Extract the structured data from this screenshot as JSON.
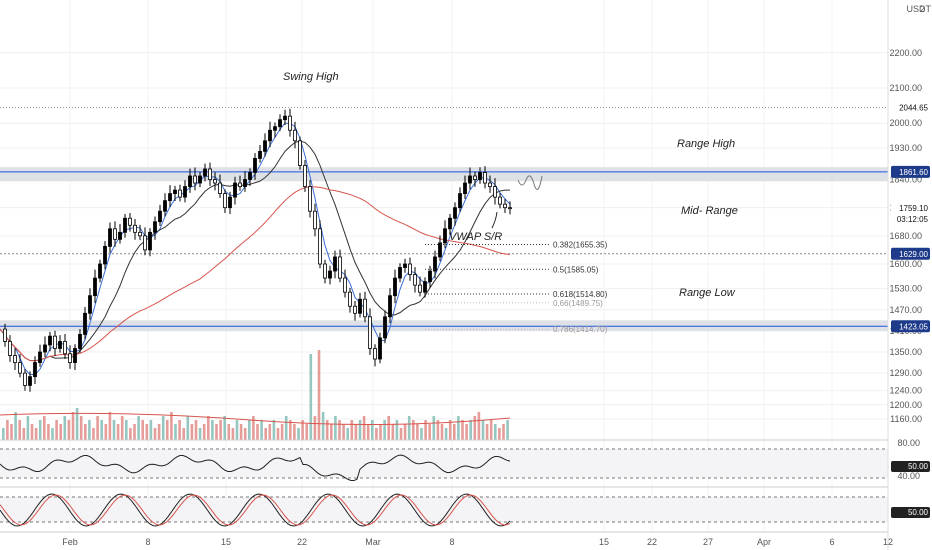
{
  "chart_data": {
    "type": "candlestick",
    "currency": "USDT",
    "ylim": [
      1100,
      2350
    ],
    "y_ticks": [
      1160,
      1200,
      1240,
      1290,
      1350,
      1410,
      1470,
      1530,
      1600,
      1680,
      1760,
      1840,
      1930,
      2000,
      2100,
      2200
    ],
    "y_tick_labels": [
      "1160.00",
      "1200.00",
      "1240.00",
      "1290.00",
      "1350.00",
      "1410.00",
      "1470.00",
      "1530.00",
      "1600.00",
      "1680.00",
      "1760.00",
      "1840.00",
      "1930.00",
      "2000.00",
      "2100.00",
      "2200.00"
    ],
    "x_ticks": [
      "Feb",
      "8",
      "15",
      "22",
      "Mar",
      "8",
      "15",
      "22",
      "27",
      "Apr",
      "6",
      "12"
    ],
    "price_levels": [
      {
        "label": "2044.65",
        "value": 2044.65
      },
      {
        "label": "1861.60",
        "value": 1861.6
      },
      {
        "label": "1629.00",
        "value": 1629.0
      },
      {
        "label": "1423.05",
        "value": 1423.05
      }
    ],
    "current_price": {
      "label": "1759.10",
      "countdown": "03:12:05",
      "value": 1759.1
    },
    "annotations": {
      "swing_high": "Swing High",
      "range_high": "Range High",
      "mid_range": "Mid- Range",
      "range_low": "Range Low",
      "vwap": "VWAP S/R"
    },
    "fib_levels": [
      {
        "label": "0.382(1655.35)",
        "value": 1655.35,
        "dim": false
      },
      {
        "label": "0.5(1585.05)",
        "value": 1585.05,
        "dim": false
      },
      {
        "label": "0.618(1514.80)",
        "value": 1514.8,
        "dim": false
      },
      {
        "label": "0.66(1489.75)",
        "value": 1489.75,
        "dim": true
      },
      {
        "label": "0.786(1414.70)",
        "value": 1414.7,
        "dim": true
      }
    ],
    "price_path": [
      [
        0,
        1415
      ],
      [
        5,
        1380
      ],
      [
        10,
        1340
      ],
      [
        15,
        1320
      ],
      [
        20,
        1290
      ],
      [
        25,
        1255
      ],
      [
        30,
        1280
      ],
      [
        35,
        1320
      ],
      [
        40,
        1350
      ],
      [
        45,
        1370
      ],
      [
        50,
        1395
      ],
      [
        55,
        1360
      ],
      [
        60,
        1380
      ],
      [
        65,
        1345
      ],
      [
        70,
        1320
      ],
      [
        75,
        1360
      ],
      [
        80,
        1400
      ],
      [
        85,
        1460
      ],
      [
        90,
        1510
      ],
      [
        95,
        1560
      ],
      [
        100,
        1600
      ],
      [
        105,
        1650
      ],
      [
        110,
        1700
      ],
      [
        115,
        1670
      ],
      [
        120,
        1690
      ],
      [
        125,
        1730
      ],
      [
        130,
        1710
      ],
      [
        135,
        1690
      ],
      [
        140,
        1680
      ],
      [
        145,
        1640
      ],
      [
        150,
        1690
      ],
      [
        155,
        1720
      ],
      [
        160,
        1750
      ],
      [
        165,
        1780
      ],
      [
        170,
        1800
      ],
      [
        175,
        1810
      ],
      [
        180,
        1790
      ],
      [
        185,
        1820
      ],
      [
        190,
        1850
      ],
      [
        195,
        1830
      ],
      [
        200,
        1850
      ],
      [
        205,
        1870
      ],
      [
        210,
        1840
      ],
      [
        215,
        1830
      ],
      [
        220,
        1800
      ],
      [
        225,
        1760
      ],
      [
        230,
        1790
      ],
      [
        235,
        1830
      ],
      [
        240,
        1820
      ],
      [
        245,
        1840
      ],
      [
        250,
        1860
      ],
      [
        255,
        1900
      ],
      [
        260,
        1920
      ],
      [
        265,
        1950
      ],
      [
        270,
        1980
      ],
      [
        275,
        1990
      ],
      [
        280,
        2010
      ],
      [
        285,
        2020
      ],
      [
        290,
        1980
      ],
      [
        295,
        1950
      ],
      [
        300,
        1880
      ],
      [
        305,
        1820
      ],
      [
        310,
        1750
      ],
      [
        315,
        1700
      ],
      [
        320,
        1600
      ],
      [
        325,
        1560
      ],
      [
        330,
        1580
      ],
      [
        335,
        1620
      ],
      [
        340,
        1560
      ],
      [
        345,
        1520
      ],
      [
        350,
        1480
      ],
      [
        355,
        1460
      ],
      [
        360,
        1500
      ],
      [
        365,
        1450
      ],
      [
        370,
        1360
      ],
      [
        375,
        1330
      ],
      [
        380,
        1390
      ],
      [
        385,
        1450
      ],
      [
        390,
        1510
      ],
      [
        395,
        1560
      ],
      [
        400,
        1590
      ],
      [
        405,
        1600
      ],
      [
        410,
        1570
      ],
      [
        415,
        1540
      ],
      [
        420,
        1520
      ],
      [
        425,
        1550
      ],
      [
        430,
        1580
      ],
      [
        435,
        1620
      ],
      [
        440,
        1660
      ],
      [
        445,
        1700
      ],
      [
        450,
        1730
      ],
      [
        455,
        1760
      ],
      [
        460,
        1800
      ],
      [
        465,
        1830
      ],
      [
        470,
        1850
      ],
      [
        475,
        1840
      ],
      [
        480,
        1860
      ],
      [
        485,
        1830
      ],
      [
        490,
        1820
      ],
      [
        495,
        1790
      ],
      [
        500,
        1770
      ],
      [
        505,
        1760
      ],
      [
        510,
        1759
      ]
    ],
    "volume_heights": [
      0.3,
      0.5,
      0.4,
      0.7,
      0.5,
      0.3,
      0.6,
      0.4,
      0.3,
      0.5,
      0.6,
      0.4,
      0.3,
      0.5,
      0.4,
      0.6,
      0.5,
      0.7,
      0.8,
      0.6,
      0.4,
      0.5,
      0.3,
      0.6,
      0.5,
      0.4,
      0.7,
      0.5,
      0.4,
      0.6,
      0.5,
      0.3,
      0.4,
      0.6,
      0.5,
      0.4,
      0.5,
      0.3,
      0.4,
      0.6,
      0.5,
      0.7,
      0.4,
      0.5,
      0.3,
      0.6,
      0.4,
      0.5,
      0.3,
      0.4,
      0.6,
      0.5,
      0.4,
      0.5,
      0.6,
      0.4,
      0.3,
      0.5,
      0.4,
      0.3,
      0.5,
      0.6,
      0.4,
      0.5,
      0.3,
      0.4,
      0.5,
      0.3,
      0.4,
      0.6,
      0.5,
      0.4,
      0.3,
      0.5,
      0.4,
      0.9,
      0.6,
      1.0,
      0.7,
      0.5,
      0.4,
      0.6,
      0.5,
      0.4,
      0.3,
      0.5,
      0.4,
      0.5,
      0.6,
      0.4,
      0.5,
      0.3,
      0.4,
      0.5,
      0.6,
      0.4,
      0.5,
      0.3,
      0.4,
      0.6,
      0.5,
      0.4,
      0.3,
      0.5,
      0.4,
      0.6,
      0.5,
      0.4,
      0.3,
      0.5,
      0.4,
      0.6,
      0.5,
      0.4,
      0.5,
      0.6,
      0.7,
      0.5,
      0.4,
      0.5,
      0.4,
      0.3,
      0.4,
      0.5,
      0.3
    ],
    "rsi_ticks": [
      "80.00",
      "50.00",
      "40.00"
    ],
    "rsi_value": "50.00",
    "stoch_value": "50.00",
    "grid": true
  },
  "colors": {
    "level_line": "#1e53e5",
    "zone_fill": "#d6d9de",
    "bull": "#000000",
    "bear": "#ffffff",
    "ma_red": "#d9544d",
    "ma_blue": "#3b6fd6",
    "ma_dark": "#333333",
    "vol_red": "#e0857f",
    "vol_teal": "#7bb9b0"
  }
}
